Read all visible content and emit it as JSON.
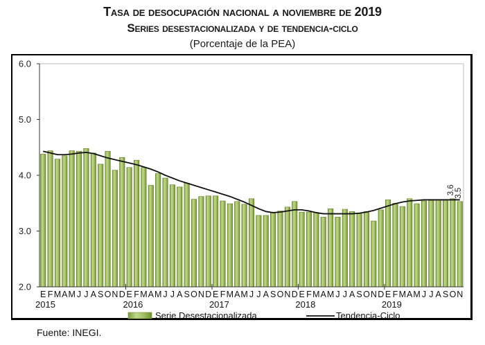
{
  "title": {
    "line1": "Tasa de desocupación nacional a noviembre de 2019",
    "line2": "Series desestacionalizada y de tendencia-ciclo",
    "line3": "(Porcentaje de la PEA)"
  },
  "source": "Fuente: INEGI.",
  "colors": {
    "bar_fill": "#9bbb59",
    "bar_dark": "#6f8f30",
    "bar_light": "#c6dc94",
    "trend": "#111111",
    "plot_border": "#c8c8c8"
  },
  "chart_data": {
    "type": "bar",
    "title": "Tasa de desocupación nacional a noviembre de 2019",
    "subtitle": "Series desestacionalizada y de tendencia-ciclo (Porcentaje de la PEA)",
    "xlabel": "",
    "ylabel": "",
    "ylim": [
      2.0,
      6.0
    ],
    "yticks": [
      "2.0",
      "3.0",
      "4.0",
      "5.0",
      "6.0"
    ],
    "grid": false,
    "legend_position": "bottom",
    "month_labels": [
      "E",
      "F",
      "M",
      "A",
      "M",
      "J",
      "J",
      "A",
      "S",
      "O",
      "N",
      "D"
    ],
    "years": [
      "2015",
      "2016",
      "2017",
      "2018",
      "2019"
    ],
    "series": [
      {
        "name": "Serie Desestacionalizada",
        "kind": "bar",
        "values": [
          4.38,
          4.44,
          4.29,
          4.35,
          4.44,
          4.43,
          4.48,
          4.4,
          4.2,
          4.43,
          4.09,
          4.32,
          4.14,
          4.27,
          4.14,
          3.82,
          4.03,
          3.95,
          3.83,
          3.79,
          3.86,
          3.57,
          3.62,
          3.63,
          3.63,
          3.54,
          3.49,
          3.53,
          3.48,
          3.58,
          3.28,
          3.28,
          3.33,
          3.36,
          3.43,
          3.53,
          3.34,
          3.34,
          3.33,
          3.25,
          3.4,
          3.25,
          3.39,
          3.35,
          3.31,
          3.35,
          3.18,
          3.38,
          3.56,
          3.5,
          3.44,
          3.58,
          3.49,
          3.54,
          3.55,
          3.56,
          3.56,
          3.58,
          3.53
        ]
      },
      {
        "name": "Tendencia-Ciclo",
        "kind": "line",
        "values": [
          4.43,
          4.4,
          4.37,
          4.37,
          4.38,
          4.4,
          4.41,
          4.39,
          4.35,
          4.31,
          4.28,
          4.25,
          4.22,
          4.19,
          4.15,
          4.11,
          4.06,
          4.0,
          3.95,
          3.9,
          3.86,
          3.82,
          3.78,
          3.74,
          3.7,
          3.66,
          3.62,
          3.57,
          3.52,
          3.46,
          3.4,
          3.35,
          3.33,
          3.34,
          3.36,
          3.38,
          3.38,
          3.36,
          3.33,
          3.31,
          3.31,
          3.31,
          3.31,
          3.31,
          3.32,
          3.34,
          3.37,
          3.41,
          3.45,
          3.49,
          3.52,
          3.54,
          3.55,
          3.56,
          3.56,
          3.56,
          3.56,
          3.56,
          3.56
        ]
      }
    ],
    "annotations": [
      "3.6",
      "3.5"
    ]
  }
}
